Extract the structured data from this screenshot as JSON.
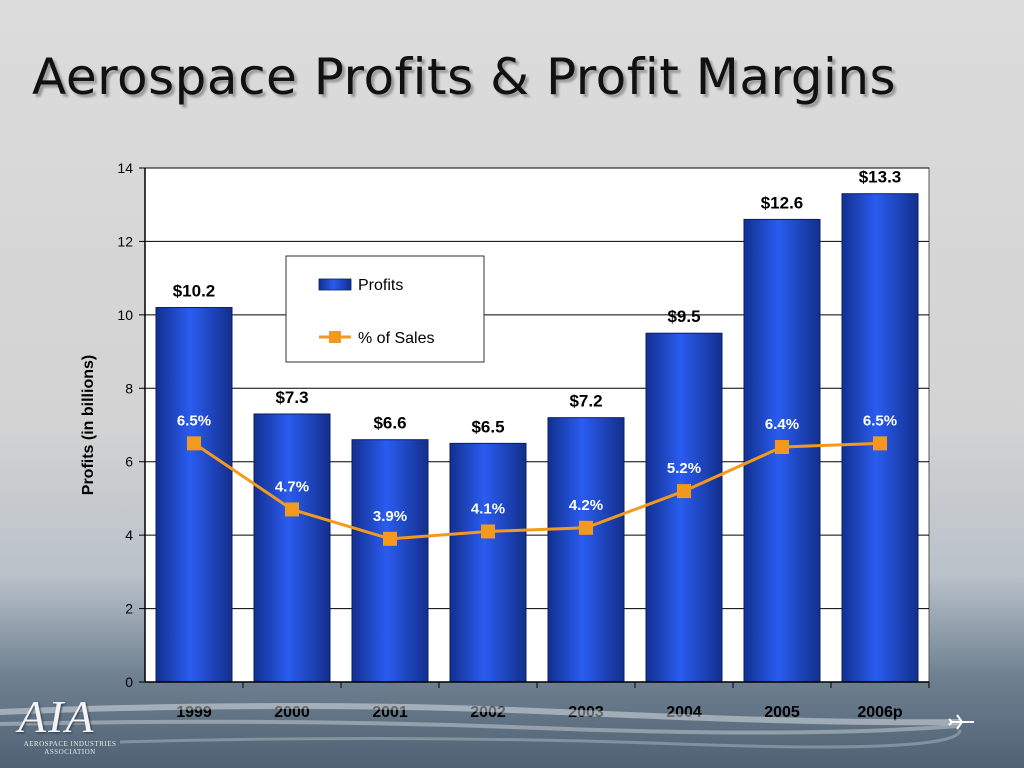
{
  "slide": {
    "title": "Aerospace Profits & Profit Margins"
  },
  "logo": {
    "letters": "AIA",
    "subtitle": "AEROSPACE INDUSTRIES ASSOCIATION"
  },
  "chart_data": {
    "type": "bar",
    "title": "",
    "xlabel": "",
    "ylabel": "Profits (in billions)",
    "categories": [
      "1999",
      "2000",
      "2001",
      "2002",
      "2003",
      "2004",
      "2005",
      "2006p"
    ],
    "ylim": [
      0,
      14
    ],
    "yticks": [
      0,
      2,
      4,
      6,
      8,
      10,
      12,
      14
    ],
    "grid": true,
    "legend": "inside-upper-center",
    "series": [
      {
        "name": "Profits",
        "type": "bar",
        "values": [
          10.2,
          7.3,
          6.6,
          6.5,
          7.2,
          9.5,
          12.6,
          13.3
        ],
        "labels": [
          "$10.2",
          "$7.3",
          "$6.6",
          "$6.5",
          "$7.2",
          "$9.5",
          "$12.6",
          "$13.3"
        ],
        "color": "#1f4fd8"
      },
      {
        "name": "% of Sales",
        "type": "line",
        "values": [
          6.5,
          4.7,
          3.9,
          4.1,
          4.2,
          5.2,
          6.4,
          6.5
        ],
        "labels": [
          "6.5%",
          "4.7%",
          "3.9%",
          "4.1%",
          "4.2%",
          "5.2%",
          "6.4%",
          "6.5%"
        ],
        "color": "#f39a1e"
      }
    ]
  }
}
